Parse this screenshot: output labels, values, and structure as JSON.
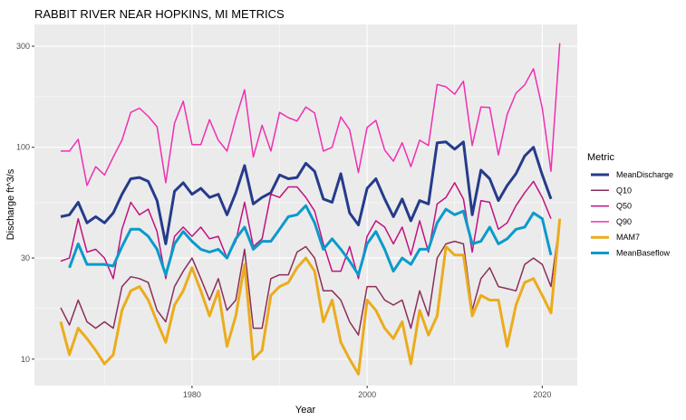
{
  "chart_data": {
    "type": "line",
    "title": "RABBIT RIVER NEAR HOPKINS, MI  METRICS",
    "xlabel": "Year",
    "ylabel": "Discharge ft^3/s",
    "x_scale": "linear",
    "y_scale": "log",
    "xlim": [
      1962,
      2024
    ],
    "ylim": [
      7.5,
      380
    ],
    "x_ticks": [
      1980,
      2000,
      2020
    ],
    "y_ticks": [
      10,
      30,
      100,
      300
    ],
    "grid": true,
    "legend": {
      "title": "Metric",
      "position": "right"
    },
    "x": [
      1965,
      1966,
      1967,
      1968,
      1969,
      1970,
      1971,
      1972,
      1973,
      1974,
      1975,
      1976,
      1977,
      1978,
      1979,
      1980,
      1981,
      1982,
      1983,
      1984,
      1985,
      1986,
      1987,
      1988,
      1989,
      1990,
      1991,
      1992,
      1993,
      1994,
      1995,
      1996,
      1997,
      1998,
      1999,
      2000,
      2001,
      2002,
      2003,
      2004,
      2005,
      2006,
      2007,
      2008,
      2009,
      2010,
      2011,
      2012,
      2013,
      2014,
      2015,
      2016,
      2017,
      2018,
      2019,
      2020,
      2021
    ],
    "series": [
      {
        "name": "MeanDischarge",
        "color": "#253B8C",
        "width": 3,
        "x": [
          1965,
          1966,
          1967,
          1968,
          1969,
          1970,
          1971,
          1972,
          1973,
          1974,
          1975,
          1976,
          1977,
          1978,
          1979,
          1980,
          1981,
          1982,
          1983,
          1984,
          1985,
          1986,
          1987,
          1988,
          1989,
          1990,
          1991,
          1992,
          1993,
          1994,
          1995,
          1996,
          1997,
          1998,
          1999,
          2000,
          2001,
          2002,
          2003,
          2004,
          2005,
          2006,
          2007,
          2008,
          2009,
          2010,
          2011,
          2012,
          2013,
          2014,
          2015,
          2016,
          2017,
          2018,
          2019,
          2020,
          2021
        ],
        "values": [
          47,
          48,
          55,
          44,
          47,
          44,
          49,
          60,
          71,
          72,
          69,
          56,
          35,
          62,
          68,
          60,
          64,
          58,
          60,
          48,
          61,
          82,
          54,
          58,
          61,
          74,
          71,
          72,
          84,
          77,
          57,
          55,
          75,
          49,
          43,
          64,
          71,
          57,
          47,
          57,
          45,
          56,
          54,
          105,
          106,
          98,
          106,
          48,
          78,
          71,
          56,
          66,
          75,
          91,
          100,
          74,
          57
        ]
      },
      {
        "name": "Q10",
        "color": "#8B2E5A",
        "width": 1.5,
        "x": [
          1965,
          1966,
          1967,
          1968,
          1969,
          1970,
          1971,
          1972,
          1973,
          1974,
          1975,
          1976,
          1977,
          1978,
          1979,
          1980,
          1981,
          1982,
          1983,
          1984,
          1985,
          1986,
          1987,
          1988,
          1989,
          1990,
          1991,
          1992,
          1993,
          1994,
          1995,
          1996,
          1997,
          1998,
          1999,
          2000,
          2001,
          2002,
          2003,
          2004,
          2005,
          2006,
          2007,
          2008,
          2009,
          2010,
          2011,
          2012,
          2013,
          2014,
          2015,
          2016,
          2017,
          2018,
          2019,
          2020,
          2021,
          2022
        ],
        "values": [
          17.5,
          14.5,
          19,
          15,
          14,
          15,
          14,
          22,
          24.5,
          24,
          23,
          17,
          15,
          22,
          26,
          30,
          24,
          19,
          24,
          17,
          19,
          33,
          14,
          14,
          24,
          25,
          25,
          32,
          34,
          30,
          21,
          21,
          19,
          15,
          13,
          22,
          22,
          19,
          18,
          19,
          14,
          21,
          16,
          30,
          35,
          36,
          35,
          17,
          24,
          27,
          22,
          21.5,
          21,
          28,
          30,
          28,
          22,
          45
        ]
      },
      {
        "name": "Q50",
        "color": "#C1127F",
        "width": 1.5,
        "x": [
          1965,
          1966,
          1967,
          1968,
          1969,
          1970,
          1971,
          1972,
          1973,
          1974,
          1975,
          1976,
          1977,
          1978,
          1979,
          1980,
          1981,
          1982,
          1983,
          1984,
          1985,
          1986,
          1987,
          1988,
          1989,
          1990,
          1991,
          1992,
          1993,
          1994,
          1995,
          1996,
          1997,
          1998,
          1999,
          2000,
          2001,
          2002,
          2003,
          2004,
          2005,
          2006,
          2007,
          2008,
          2009,
          2010,
          2011,
          2012,
          2013,
          2014,
          2015,
          2016,
          2017,
          2018,
          2019,
          2020,
          2021
        ],
        "values": [
          29,
          30,
          46,
          32,
          33,
          30,
          24,
          41,
          55,
          48,
          51,
          40,
          24,
          38,
          42,
          38,
          42,
          37,
          38,
          30,
          36,
          55,
          34,
          37,
          60,
          58,
          65,
          65,
          58,
          50,
          35,
          26,
          26,
          34,
          24,
          38,
          45,
          42,
          35,
          42,
          31,
          45,
          32,
          54,
          58,
          68,
          57,
          32,
          56,
          55,
          41,
          44,
          53,
          61,
          69,
          58,
          46
        ]
      },
      {
        "name": "Q90",
        "color": "#F02FB2",
        "width": 1.5,
        "x": [
          1965,
          1966,
          1967,
          1968,
          1969,
          1970,
          1971,
          1972,
          1973,
          1974,
          1975,
          1976,
          1977,
          1978,
          1979,
          1980,
          1981,
          1982,
          1983,
          1984,
          1985,
          1986,
          1987,
          1988,
          1989,
          1990,
          1991,
          1992,
          1993,
          1994,
          1995,
          1996,
          1997,
          1998,
          1999,
          2000,
          2001,
          2002,
          2003,
          2004,
          2005,
          2006,
          2007,
          2008,
          2009,
          2010,
          2011,
          2012,
          2013,
          2014,
          2015,
          2016,
          2017,
          2018,
          2019,
          2020,
          2021,
          2022
        ],
        "values": [
          96,
          96,
          109,
          66,
          81,
          74,
          90,
          108,
          146,
          153,
          140,
          125,
          68,
          130,
          165,
          103,
          103,
          135,
          108,
          96,
          137,
          187,
          90,
          127,
          96,
          146,
          138,
          133,
          155,
          145,
          96,
          100,
          139,
          121,
          76,
          124,
          134,
          97,
          86,
          105,
          81,
          108,
          102,
          198,
          193,
          178,
          205,
          102,
          155,
          154,
          92,
          143,
          180,
          197,
          235,
          153,
          77,
          310
        ]
      },
      {
        "name": "MAM7",
        "color": "#EBAC1C",
        "width": 3,
        "x": [
          1965,
          1966,
          1967,
          1968,
          1969,
          1970,
          1971,
          1972,
          1973,
          1974,
          1975,
          1976,
          1977,
          1978,
          1979,
          1980,
          1981,
          1982,
          1983,
          1984,
          1985,
          1986,
          1987,
          1988,
          1989,
          1990,
          1991,
          1992,
          1993,
          1994,
          1995,
          1996,
          1997,
          1998,
          1999,
          2000,
          2001,
          2002,
          2003,
          2004,
          2005,
          2006,
          2007,
          2008,
          2009,
          2010,
          2011,
          2012,
          2013,
          2014,
          2015,
          2016,
          2017,
          2018,
          2019,
          2020,
          2021,
          2022
        ],
        "values": [
          15,
          10.5,
          14,
          12.5,
          11,
          9.5,
          10.5,
          17,
          21,
          22,
          19,
          15,
          12,
          18,
          21,
          27,
          21,
          16,
          21,
          11.5,
          16,
          28,
          10,
          11,
          20,
          22,
          23,
          27,
          30,
          26,
          15,
          19,
          12,
          10,
          8.5,
          19,
          17,
          14,
          12.5,
          15,
          9.5,
          17,
          13,
          16,
          34,
          31,
          31,
          16,
          20,
          19,
          19,
          11.5,
          18,
          23,
          24,
          20,
          16.5,
          46
        ]
      },
      {
        "name": "MeanBaseflow",
        "color": "#0B9ACB",
        "width": 3,
        "x": [
          1966,
          1967,
          1968,
          1969,
          1970,
          1971,
          1972,
          1973,
          1974,
          1975,
          1976,
          1977,
          1978,
          1979,
          1980,
          1981,
          1982,
          1983,
          1984,
          1985,
          1986,
          1987,
          1988,
          1989,
          1990,
          1991,
          1992,
          1993,
          1994,
          1995,
          1996,
          1997,
          1998,
          1999,
          2000,
          2001,
          2002,
          2003,
          2004,
          2005,
          2006,
          2007,
          2008,
          2009,
          2010,
          2011,
          2012,
          2013,
          2014,
          2015,
          2016,
          2017,
          2018,
          2019,
          2020,
          2021
        ],
        "values": [
          27,
          35,
          28,
          28,
          28,
          27.5,
          34,
          41,
          41,
          38,
          33,
          25,
          35,
          40,
          36,
          33,
          32,
          33,
          30,
          37,
          42,
          33,
          36,
          36,
          41,
          47,
          48,
          53,
          44,
          33,
          37,
          33,
          29,
          25,
          35,
          40,
          33,
          26,
          30,
          28,
          33,
          33,
          44,
          51,
          48,
          50,
          35,
          36,
          42,
          35,
          37,
          41,
          42,
          49,
          46,
          31
        ]
      }
    ]
  }
}
